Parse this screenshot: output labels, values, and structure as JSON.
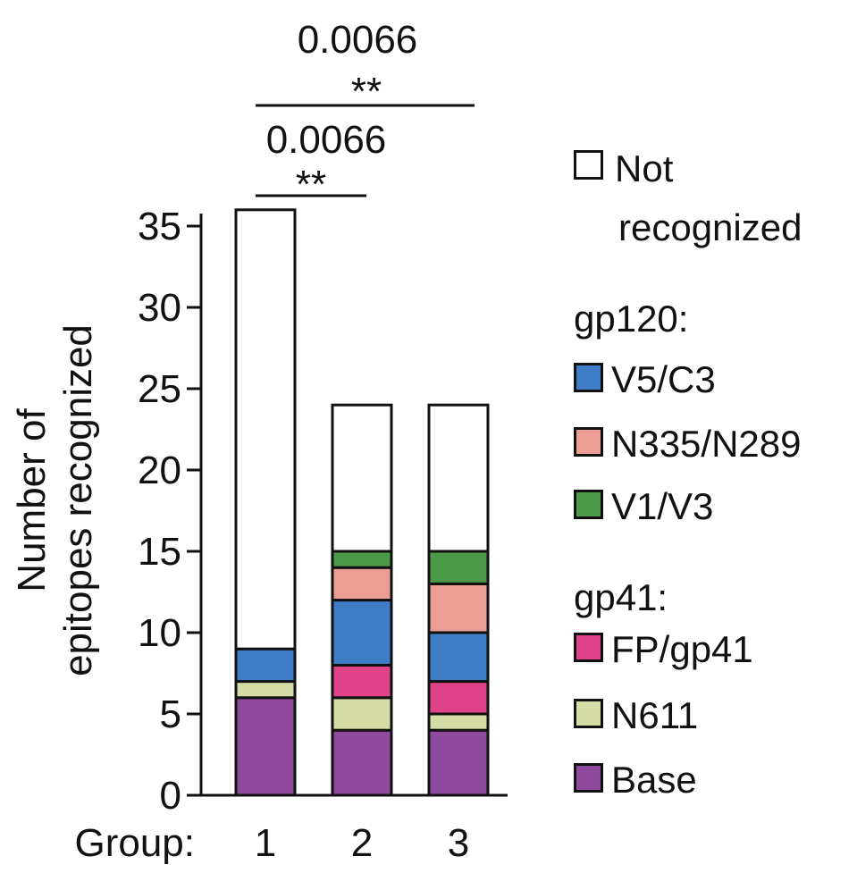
{
  "chart_data": {
    "type": "bar",
    "stacked": true,
    "ylabel_line1": "Number of",
    "ylabel_line2": "epitopes recognized",
    "x_prefix": "Group:",
    "categories": [
      "1",
      "2",
      "3"
    ],
    "ylim": [
      0,
      36
    ],
    "yticks": [
      0,
      5,
      10,
      15,
      20,
      25,
      30,
      35
    ],
    "series": [
      {
        "name": "Base",
        "values": [
          6,
          4,
          4
        ],
        "color": "#8e4a9c"
      },
      {
        "name": "N611",
        "values": [
          1,
          2,
          1
        ],
        "color": "#d6dca6"
      },
      {
        "name": "FP/gp41",
        "values": [
          0,
          2,
          2
        ],
        "color": "#e0428a"
      },
      {
        "name": "V5/C3",
        "values": [
          2,
          4,
          3
        ],
        "color": "#3f7dc6"
      },
      {
        "name": "N335/N289",
        "values": [
          0,
          2,
          3
        ],
        "color": "#ec9e96"
      },
      {
        "name": "V1/V3",
        "values": [
          0,
          1,
          2
        ],
        "color": "#4d9a49"
      },
      {
        "name": "Not recognized",
        "values": [
          27,
          9,
          9
        ],
        "color": "#ffffff"
      }
    ],
    "comparisons": [
      {
        "groups": [
          "1",
          "2"
        ],
        "p": "0.0066",
        "stars": "**"
      },
      {
        "groups": [
          "1",
          "3"
        ],
        "p": "0.0066",
        "stars": "**"
      }
    ],
    "legend": {
      "not_recognized_line1": "Not",
      "not_recognized_line2": "recognized",
      "gp120_header": "gp120:",
      "gp41_header": "gp41:"
    }
  }
}
